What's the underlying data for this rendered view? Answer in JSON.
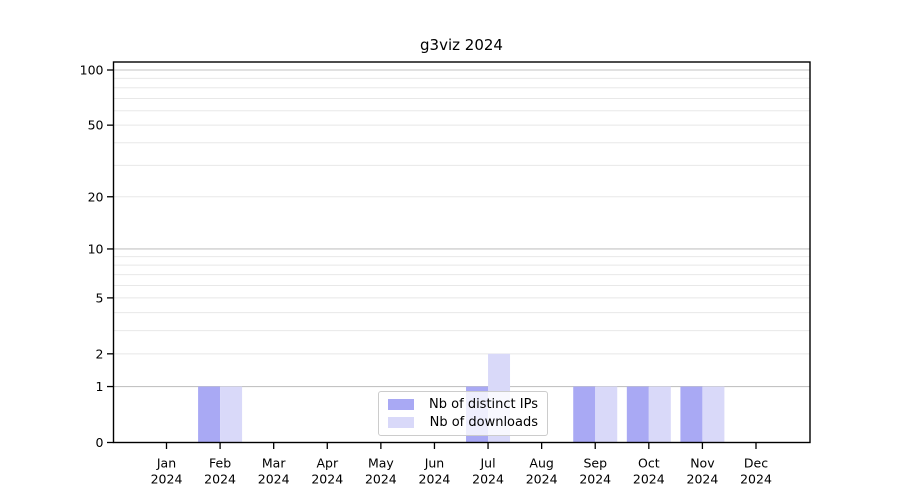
{
  "chart_data": {
    "type": "bar",
    "title": "g3viz 2024",
    "categories": [
      {
        "month": "Jan",
        "year": "2024"
      },
      {
        "month": "Feb",
        "year": "2024"
      },
      {
        "month": "Mar",
        "year": "2024"
      },
      {
        "month": "Apr",
        "year": "2024"
      },
      {
        "month": "May",
        "year": "2024"
      },
      {
        "month": "Jun",
        "year": "2024"
      },
      {
        "month": "Jul",
        "year": "2024"
      },
      {
        "month": "Aug",
        "year": "2024"
      },
      {
        "month": "Sep",
        "year": "2024"
      },
      {
        "month": "Oct",
        "year": "2024"
      },
      {
        "month": "Nov",
        "year": "2024"
      },
      {
        "month": "Dec",
        "year": "2024"
      }
    ],
    "series": [
      {
        "name": "Nb of distinct IPs",
        "color": "#a9a9f4",
        "values": [
          0,
          1,
          0,
          0,
          0,
          0,
          1,
          0,
          1,
          1,
          1,
          0
        ]
      },
      {
        "name": "Nb of downloads",
        "color": "#d9d9f9",
        "values": [
          0,
          1,
          0,
          0,
          0,
          0,
          2,
          0,
          1,
          1,
          1,
          0
        ]
      }
    ],
    "yscale": "log1p",
    "ylim": [
      0,
      110
    ],
    "yticks": [
      0,
      1,
      2,
      5,
      10,
      20,
      50,
      100
    ],
    "grid": {
      "on": true,
      "major": [
        1,
        10,
        100
      ],
      "minor": [
        2,
        3,
        4,
        5,
        6,
        7,
        8,
        9,
        20,
        30,
        40,
        50,
        60,
        70,
        80,
        90
      ],
      "major_color": "#c3c3c3",
      "minor_color": "#e8e8e8"
    },
    "legend": {
      "position": "lower-center-inside",
      "background": "rgba(255,255,255,0.8)",
      "border_color": "#cccccc"
    },
    "axis_color": "#000000",
    "xlabel": "",
    "ylabel": ""
  }
}
